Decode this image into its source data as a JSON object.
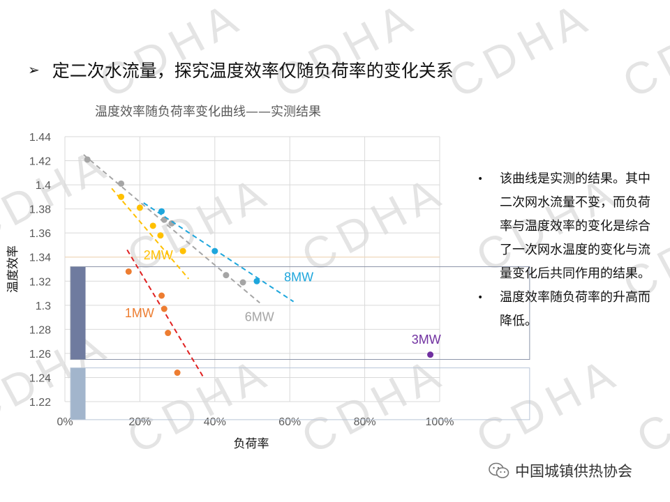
{
  "watermark": {
    "text": "CDHA"
  },
  "heading": {
    "marker": "➢",
    "text": "定二次水流量，探究温度效率仅随负荷率的变化关系"
  },
  "chart_data": {
    "type": "scatter",
    "title": "温度效率随负荷率变化曲线——实测结果",
    "xlabel": "负荷率",
    "ylabel": "温度效率",
    "xlim": [
      0,
      1
    ],
    "ylim": [
      1.22,
      1.44
    ],
    "xticks": [
      {
        "value": 0,
        "label": "0%"
      },
      {
        "value": 0.2,
        "label": "20%"
      },
      {
        "value": 0.4,
        "label": "40%"
      },
      {
        "value": 0.6,
        "label": "60%"
      },
      {
        "value": 0.8,
        "label": "80%"
      },
      {
        "value": 1.0,
        "label": "100%"
      }
    ],
    "yticks": [
      {
        "value": 1.22,
        "label": "1.22"
      },
      {
        "value": 1.24,
        "label": "1.24"
      },
      {
        "value": 1.26,
        "label": "1.26"
      },
      {
        "value": 1.28,
        "label": "1.28"
      },
      {
        "value": 1.3,
        "label": "1.3"
      },
      {
        "value": 1.32,
        "label": "1.32"
      },
      {
        "value": 1.34,
        "label": "1.34"
      },
      {
        "value": 1.36,
        "label": "1.36"
      },
      {
        "value": 1.38,
        "label": "1.38"
      },
      {
        "value": 1.4,
        "label": "1.4"
      },
      {
        "value": 1.42,
        "label": "1.42"
      },
      {
        "value": 1.44,
        "label": "1.44"
      }
    ],
    "grid": true,
    "reference_line": {
      "y": 1.34,
      "color": "#f4d6b2"
    },
    "series": [
      {
        "name": "1MW",
        "color": "#ed7d31",
        "points": [
          [
            0.17,
            1.328
          ],
          [
            0.258,
            1.308
          ],
          [
            0.265,
            1.297
          ],
          [
            0.275,
            1.277
          ],
          [
            0.3,
            1.244
          ]
        ],
        "trend": [
          [
            0.166,
            1.346
          ],
          [
            0.37,
            1.24
          ]
        ],
        "trend_color": "#e02020",
        "label": {
          "text": "1MW",
          "x": 0.16,
          "y": 1.29
        }
      },
      {
        "name": "2MW",
        "color": "#ffc000",
        "points": [
          [
            0.15,
            1.39
          ],
          [
            0.2,
            1.381
          ],
          [
            0.235,
            1.366
          ],
          [
            0.255,
            1.358
          ],
          [
            0.315,
            1.345
          ]
        ],
        "trend": [
          [
            0.125,
            1.397
          ],
          [
            0.33,
            1.322
          ]
        ],
        "trend_color": "#ffc000",
        "label": {
          "text": "2MW",
          "x": 0.21,
          "y": 1.338
        }
      },
      {
        "name": "6MW",
        "color": "#a5a5a5",
        "points": [
          [
            0.06,
            1.421
          ],
          [
            0.15,
            1.401
          ],
          [
            0.265,
            1.371
          ],
          [
            0.285,
            1.368
          ],
          [
            0.43,
            1.325
          ],
          [
            0.475,
            1.319
          ]
        ],
        "trend": [
          [
            0.05,
            1.425
          ],
          [
            0.52,
            1.302
          ]
        ],
        "trend_color": "#a5a5a5",
        "label": {
          "text": "6MW",
          "x": 0.48,
          "y": 1.287
        }
      },
      {
        "name": "8MW",
        "color": "#1ea6dc",
        "points": [
          [
            0.258,
            1.378
          ],
          [
            0.4,
            1.345
          ],
          [
            0.512,
            1.32
          ]
        ],
        "trend": [
          [
            0.21,
            1.385
          ],
          [
            0.61,
            1.303
          ]
        ],
        "trend_color": "#1ea6dc",
        "label": {
          "text": "8MW",
          "x": 0.585,
          "y": 1.32
        }
      },
      {
        "name": "3MW",
        "color": "#7030a0",
        "points": [
          [
            0.975,
            1.259
          ]
        ],
        "label": {
          "text": "3MW",
          "x": 0.925,
          "y": 1.268
        }
      }
    ],
    "overlay_boxes": [
      {
        "x0": 0.015,
        "x1": 1.24,
        "y0": 1.255,
        "y1": 1.332,
        "border": "#8a93a8",
        "fill_strip": "#6f7b9f",
        "strip_x1": 0.055
      },
      {
        "x0": 0.015,
        "x1": 1.24,
        "y0": 1.205,
        "y1": 1.248,
        "border": "#b6c4d6",
        "fill_strip": "#a2b5cc",
        "strip_x1": 0.055
      }
    ]
  },
  "notes": [
    "该曲线是实测的结果。其中二次网水流量不变，而负荷率与温度效率的变化是综合了一次网水温度的变化与流量变化后共同作用的结果。",
    "温度效率随负荷率的升高而降低。"
  ],
  "footer": {
    "org_name": "中国城镇供热协会",
    "logo": "wechat-icon"
  }
}
